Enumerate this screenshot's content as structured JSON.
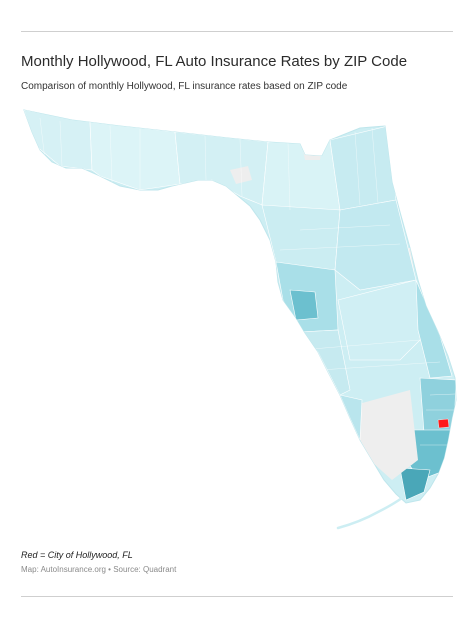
{
  "header": {
    "title": "Monthly Hollywood, FL Auto Insurance Rates by ZIP Code",
    "subtitle": "Comparison of monthly Hollywood, FL insurance rates based on ZIP code"
  },
  "map": {
    "region": "Florida",
    "legend_note": "Red = City of Hollywood, FL",
    "credit": "Map: AutoInsurance.org • Source: Quadrant",
    "colors": {
      "base": "#cdeef3",
      "light": "#dff5f8",
      "medium": "#a9dfe8",
      "dark": "#6cc0cf",
      "darkest": "#4aa7b8",
      "no_data": "#eeeeee",
      "highlight": "#ff1a1a",
      "border": "#ffffff"
    }
  }
}
